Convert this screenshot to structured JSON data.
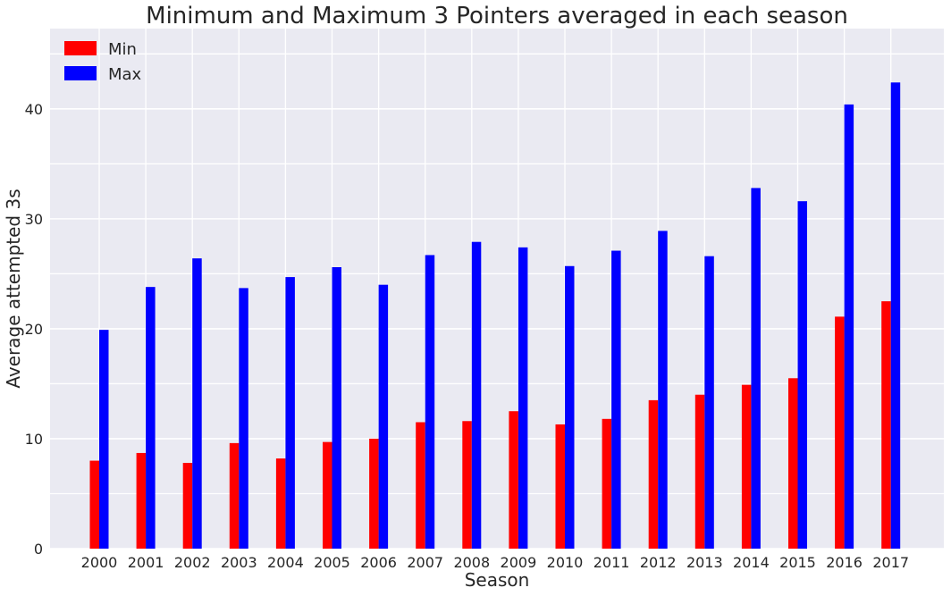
{
  "chart_data": {
    "type": "bar",
    "title": "Minimum and Maximum 3 Pointers averaged in each season",
    "xlabel": "Season",
    "ylabel": "Average attempted 3s",
    "categories": [
      "2000",
      "2001",
      "2002",
      "2003",
      "2004",
      "2005",
      "2006",
      "2007",
      "2008",
      "2009",
      "2010",
      "2011",
      "2012",
      "2013",
      "2014",
      "2015",
      "2016",
      "2017"
    ],
    "series": [
      {
        "name": "Min",
        "color": "#ff0000",
        "values": [
          8.0,
          8.7,
          7.8,
          9.6,
          8.2,
          9.7,
          10.0,
          11.5,
          11.6,
          12.5,
          11.3,
          11.8,
          13.5,
          14.0,
          14.9,
          15.5,
          21.1,
          22.5
        ]
      },
      {
        "name": "Max",
        "color": "#0000ff",
        "values": [
          19.9,
          23.8,
          26.4,
          23.7,
          24.7,
          25.6,
          24.0,
          26.7,
          27.9,
          27.4,
          25.7,
          27.1,
          28.9,
          26.6,
          32.8,
          31.6,
          40.4,
          42.4
        ]
      }
    ],
    "ylim": [
      0,
      47.3
    ],
    "yticks": [
      0,
      10,
      20,
      30,
      40
    ],
    "grid": true,
    "legend": "top-left",
    "background": "#eaeaf2",
    "gridcolor": "#ffffff"
  }
}
